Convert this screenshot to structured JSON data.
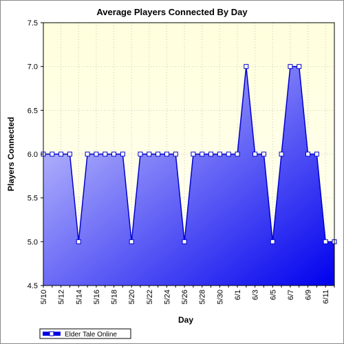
{
  "chart_data": {
    "type": "area",
    "title": "Average Players Connected By Day",
    "xlabel": "Day",
    "ylabel": "Players Connected",
    "ylim": [
      4.5,
      7.5
    ],
    "yticks": [
      "4.5",
      "5.0",
      "5.5",
      "6.0",
      "6.5",
      "7.0",
      "7.5"
    ],
    "xtick_labels": [
      "5/10",
      "5/12",
      "5/14",
      "5/16",
      "5/18",
      "5/20",
      "5/22",
      "5/24",
      "5/26",
      "5/28",
      "5/30",
      "6/1",
      "6/3",
      "6/5",
      "6/7",
      "6/9",
      "6/11"
    ],
    "x": [
      "5/10",
      "5/11",
      "5/12",
      "5/13",
      "5/14",
      "5/15",
      "5/16",
      "5/17",
      "5/18",
      "5/19",
      "5/20",
      "5/21",
      "5/22",
      "5/23",
      "5/24",
      "5/25",
      "5/26",
      "5/27",
      "5/28",
      "5/29",
      "5/30",
      "5/31",
      "6/1",
      "6/2",
      "6/3",
      "6/4",
      "6/5",
      "6/6",
      "6/7",
      "6/8",
      "6/9",
      "6/10",
      "6/11",
      "6/12"
    ],
    "series": [
      {
        "name": "Elder Tale Online",
        "values": [
          6,
          6,
          6,
          6,
          5,
          6,
          6,
          6,
          6,
          6,
          5,
          6,
          6,
          6,
          6,
          6,
          5,
          6,
          6,
          6,
          6,
          6,
          6,
          7,
          6,
          6,
          5,
          6,
          7,
          7,
          6,
          6,
          5,
          5
        ]
      }
    ],
    "grid": true,
    "legend": "bottom-left",
    "colors": {
      "plot_bg_top": "#ffffdd",
      "plot_bg_bottom": "#fffff4",
      "fill_light": "#d8d8ff",
      "fill_dark": "#0000ee",
      "line": "#0000cc",
      "marker_fill": "#ffffff"
    }
  }
}
